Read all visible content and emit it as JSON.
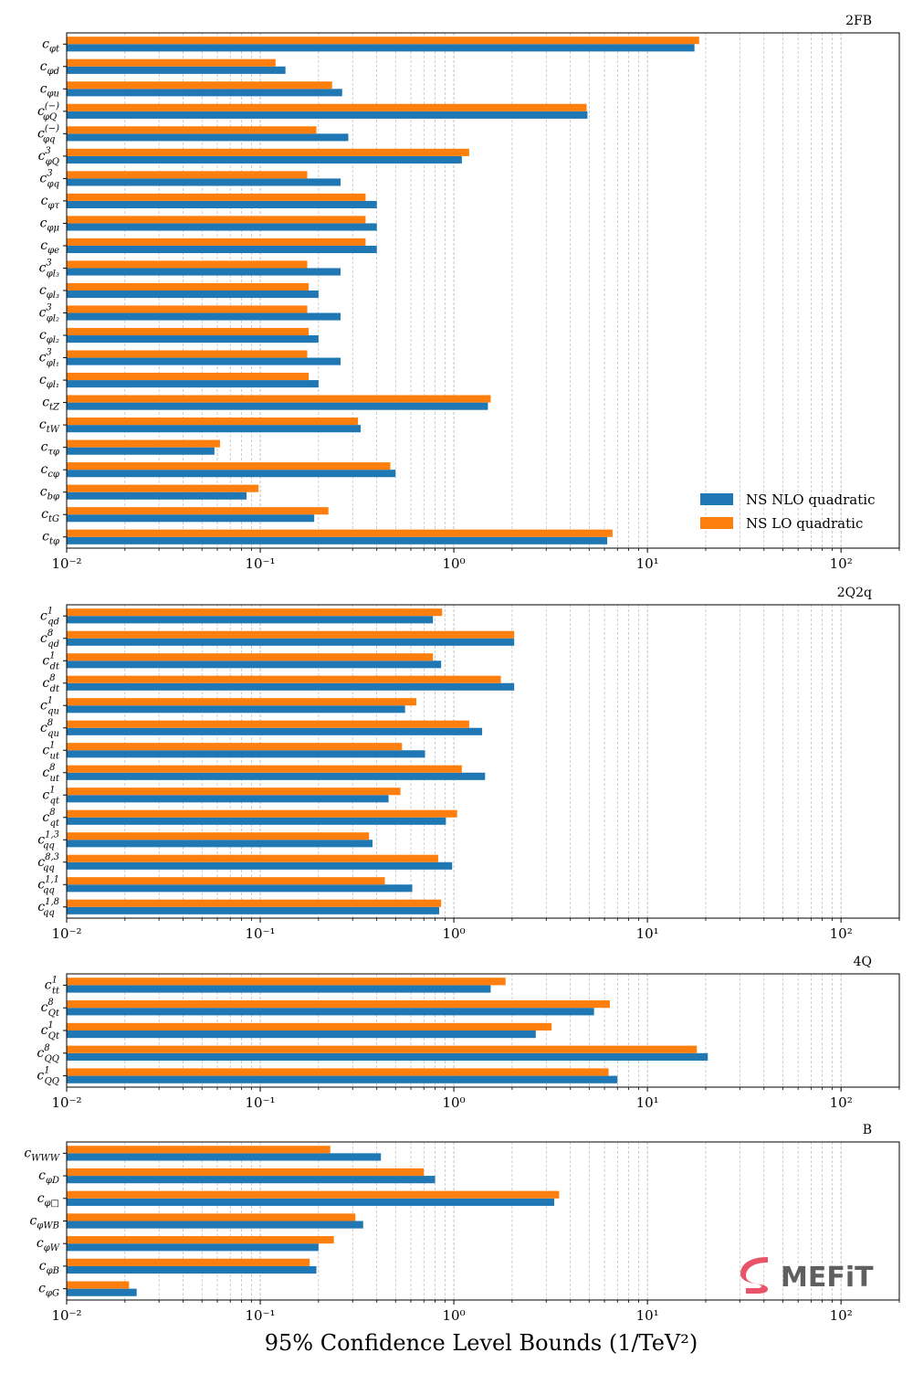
{
  "colors": {
    "nlo": "#1f77b4",
    "lo": "#ff7f0e",
    "grid": "#b0b0b0"
  },
  "xlabel": "95% Confidence Level Bounds (1/TeV²)",
  "logo": {
    "text": "MEFiT"
  },
  "chart_data": [
    {
      "type": "bar",
      "orientation": "horizontal",
      "title": "2FB",
      "xscale": "log",
      "xlim": [
        0.01,
        200
      ],
      "xticks": [
        {
          "value": 0.01,
          "label": "10⁻²"
        },
        {
          "value": 0.1,
          "label": "10⁻¹"
        },
        {
          "value": 1,
          "label": "10⁰"
        },
        {
          "value": 10,
          "label": "10¹"
        },
        {
          "value": 100,
          "label": "10²"
        }
      ],
      "grid": "x-major-and-minor",
      "legend": {
        "position": "lower-right",
        "entries": [
          "NS  NLO quadratic",
          "NS  LO quadratic"
        ]
      },
      "categories": [
        "cφt",
        "cφd",
        "cφu",
        "c(−)φQ",
        "c(−)φq",
        "c3φQ",
        "c3φq",
        "cφτ",
        "cφμ",
        "cφe",
        "c3φl3",
        "cφl3",
        "c3φl2",
        "cφl2",
        "c3φl1",
        "cφl1",
        "ctZ",
        "ctW",
        "cτφ",
        "ccφ",
        "cbφ",
        "ctG",
        "ctφ"
      ],
      "labels": [
        {
          "base": "c",
          "sub": "φt"
        },
        {
          "base": "c",
          "sub": "φd"
        },
        {
          "base": "c",
          "sub": "φu"
        },
        {
          "base": "c",
          "sub": "φQ",
          "sup": "(−)"
        },
        {
          "base": "c",
          "sub": "φq",
          "sup": "(−)"
        },
        {
          "base": "c",
          "sub": "φQ",
          "sup": "3"
        },
        {
          "base": "c",
          "sub": "φq",
          "sup": "3"
        },
        {
          "base": "c",
          "sub": "φτ"
        },
        {
          "base": "c",
          "sub": "φμ"
        },
        {
          "base": "c",
          "sub": "φe"
        },
        {
          "base": "c",
          "sub": "φl₃",
          "sup": "3"
        },
        {
          "base": "c",
          "sub": "φl₃"
        },
        {
          "base": "c",
          "sub": "φl₂",
          "sup": "3"
        },
        {
          "base": "c",
          "sub": "φl₂"
        },
        {
          "base": "c",
          "sub": "φl₁",
          "sup": "3"
        },
        {
          "base": "c",
          "sub": "φl₁"
        },
        {
          "base": "c",
          "sub": "tZ"
        },
        {
          "base": "c",
          "sub": "tW"
        },
        {
          "base": "c",
          "sub": "τφ"
        },
        {
          "base": "c",
          "sub": "cφ"
        },
        {
          "base": "c",
          "sub": "bφ"
        },
        {
          "base": "c",
          "sub": "tG"
        },
        {
          "base": "c",
          "sub": "tφ"
        }
      ],
      "series": [
        {
          "name": "NS  NLO quadratic",
          "values": [
            17.5,
            0.135,
            0.265,
            4.9,
            0.285,
            1.1,
            0.26,
            0.4,
            0.4,
            0.4,
            0.26,
            0.2,
            0.26,
            0.2,
            0.26,
            0.2,
            1.5,
            0.33,
            0.058,
            0.5,
            0.085,
            0.19,
            6.2
          ]
        },
        {
          "name": "NS  LO quadratic",
          "values": [
            18.5,
            0.12,
            0.235,
            4.85,
            0.195,
            1.2,
            0.175,
            0.35,
            0.35,
            0.35,
            0.175,
            0.178,
            0.175,
            0.178,
            0.175,
            0.178,
            1.55,
            0.32,
            0.062,
            0.47,
            0.098,
            0.225,
            6.6
          ]
        }
      ]
    },
    {
      "type": "bar",
      "orientation": "horizontal",
      "title": "2Q2q",
      "xscale": "log",
      "xlim": [
        0.01,
        200
      ],
      "xticks": [
        {
          "value": 0.01,
          "label": "10⁻²"
        },
        {
          "value": 0.1,
          "label": "10⁻¹"
        },
        {
          "value": 1,
          "label": "10⁰"
        },
        {
          "value": 10,
          "label": "10¹"
        },
        {
          "value": 100,
          "label": "10²"
        }
      ],
      "grid": "x-major-and-minor",
      "categories": [
        "c1qd",
        "c8qd",
        "c1dt",
        "c8dt",
        "c1qu",
        "c8qu",
        "c1ut",
        "c8ut",
        "c1qt",
        "c8qt",
        "c1,3qq",
        "c8,3qq",
        "c1,1qq",
        "c1,8qq"
      ],
      "labels": [
        {
          "base": "c",
          "sub": "qd",
          "sup": "1"
        },
        {
          "base": "c",
          "sub": "qd",
          "sup": "8"
        },
        {
          "base": "c",
          "sub": "dt",
          "sup": "1"
        },
        {
          "base": "c",
          "sub": "dt",
          "sup": "8"
        },
        {
          "base": "c",
          "sub": "qu",
          "sup": "1"
        },
        {
          "base": "c",
          "sub": "qu",
          "sup": "8"
        },
        {
          "base": "c",
          "sub": "ut",
          "sup": "1"
        },
        {
          "base": "c",
          "sub": "ut",
          "sup": "8"
        },
        {
          "base": "c",
          "sub": "qt",
          "sup": "1"
        },
        {
          "base": "c",
          "sub": "qt",
          "sup": "8"
        },
        {
          "base": "c",
          "sub": "qq",
          "sup": "1,3"
        },
        {
          "base": "c",
          "sub": "qq",
          "sup": "8,3"
        },
        {
          "base": "c",
          "sub": "qq",
          "sup": "1,1"
        },
        {
          "base": "c",
          "sub": "qq",
          "sup": "1,8"
        }
      ],
      "series": [
        {
          "name": "NS  NLO quadratic",
          "values": [
            0.78,
            2.05,
            0.86,
            2.05,
            0.56,
            1.4,
            0.71,
            1.45,
            0.46,
            0.91,
            0.38,
            0.98,
            0.61,
            0.84
          ]
        },
        {
          "name": "NS  LO quadratic",
          "values": [
            0.87,
            2.05,
            0.78,
            1.75,
            0.64,
            1.2,
            0.54,
            1.1,
            0.53,
            1.04,
            0.365,
            0.83,
            0.44,
            0.86
          ]
        }
      ]
    },
    {
      "type": "bar",
      "orientation": "horizontal",
      "title": "4Q",
      "xscale": "log",
      "xlim": [
        0.01,
        200
      ],
      "xticks": [
        {
          "value": 0.01,
          "label": "10⁻²"
        },
        {
          "value": 0.1,
          "label": "10⁻¹"
        },
        {
          "value": 1,
          "label": "10⁰"
        },
        {
          "value": 10,
          "label": "10¹"
        },
        {
          "value": 100,
          "label": "10²"
        }
      ],
      "grid": "x-major-and-minor",
      "categories": [
        "c1tt",
        "c8Qt",
        "c1Qt",
        "c8QQ",
        "c1QQ"
      ],
      "labels": [
        {
          "base": "c",
          "sub": "tt",
          "sup": "1"
        },
        {
          "base": "c",
          "sub": "Qt",
          "sup": "8"
        },
        {
          "base": "c",
          "sub": "Qt",
          "sup": "1"
        },
        {
          "base": "c",
          "sub": "QQ",
          "sup": "8"
        },
        {
          "base": "c",
          "sub": "QQ",
          "sup": "1"
        }
      ],
      "series": [
        {
          "name": "NS  NLO quadratic",
          "values": [
            1.55,
            5.3,
            2.65,
            20.5,
            7.0
          ]
        },
        {
          "name": "NS  LO quadratic",
          "values": [
            1.85,
            6.4,
            3.2,
            18.0,
            6.3
          ]
        }
      ]
    },
    {
      "type": "bar",
      "orientation": "horizontal",
      "title": "B",
      "xscale": "log",
      "xlim": [
        0.01,
        200
      ],
      "xticks": [
        {
          "value": 0.01,
          "label": "10⁻²"
        },
        {
          "value": 0.1,
          "label": "10⁻¹"
        },
        {
          "value": 1,
          "label": "10⁰"
        },
        {
          "value": 10,
          "label": "10¹"
        },
        {
          "value": 100,
          "label": "10²"
        }
      ],
      "grid": "x-major-and-minor",
      "categories": [
        "cWWW",
        "cφD",
        "cφ□",
        "cφWB",
        "cφW",
        "cφB",
        "cφG"
      ],
      "labels": [
        {
          "base": "c",
          "sub": "WWW"
        },
        {
          "base": "c",
          "sub": "φD"
        },
        {
          "base": "c",
          "sub": "φ□"
        },
        {
          "base": "c",
          "sub": "φWB"
        },
        {
          "base": "c",
          "sub": "φW"
        },
        {
          "base": "c",
          "sub": "φB"
        },
        {
          "base": "c",
          "sub": "φG"
        }
      ],
      "series": [
        {
          "name": "NS  NLO quadratic",
          "values": [
            0.42,
            0.8,
            3.3,
            0.34,
            0.2,
            0.195,
            0.023
          ]
        },
        {
          "name": "NS  LO quadratic",
          "values": [
            0.23,
            0.7,
            3.5,
            0.31,
            0.24,
            0.18,
            0.021
          ]
        }
      ]
    }
  ]
}
